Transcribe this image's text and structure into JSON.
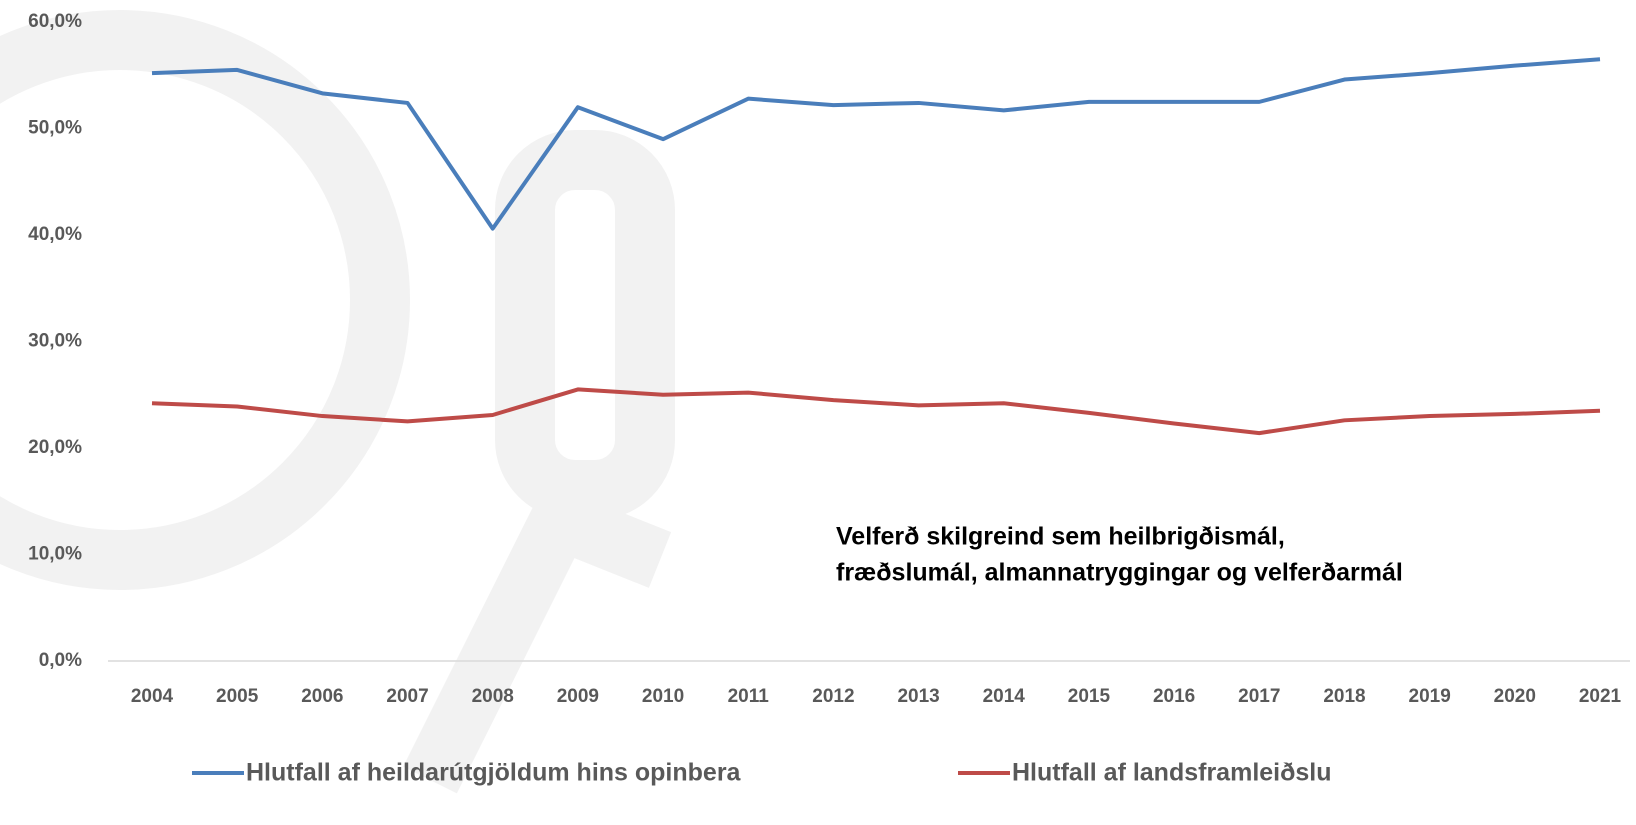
{
  "chart_data": {
    "type": "line",
    "annotation": [
      "Velferð skilgreind sem heilbrigðismál,",
      "fræðslumál, almannatryggingar og velferðarmál"
    ],
    "categories": [
      "2004",
      "2005",
      "2006",
      "2007",
      "2008",
      "2009",
      "2010",
      "2011",
      "2012",
      "2013",
      "2014",
      "2015",
      "2016",
      "2017",
      "2018",
      "2019",
      "2020",
      "2021"
    ],
    "series": [
      {
        "name": "Hlutfall af heildarútgjöldum hins opinbera",
        "color": "#4a7ebb",
        "values": [
          55.2,
          55.5,
          53.3,
          52.4,
          40.6,
          52.0,
          49.0,
          52.8,
          52.2,
          52.4,
          51.7,
          52.5,
          52.5,
          52.5,
          54.6,
          55.2,
          55.9,
          56.5
        ]
      },
      {
        "name": "Hlutfall af landsframleiðslu",
        "color": "#be4b48",
        "values": [
          24.2,
          23.9,
          23.0,
          22.5,
          23.1,
          25.5,
          25.0,
          25.2,
          24.5,
          24.0,
          24.2,
          23.3,
          22.3,
          21.4,
          22.6,
          23.0,
          23.2,
          23.5
        ]
      }
    ],
    "ylim": [
      0,
      60
    ],
    "yticks": [
      {
        "value": 0,
        "label": "0,0%"
      },
      {
        "value": 10,
        "label": "10,0%"
      },
      {
        "value": 20,
        "label": "20,0%"
      },
      {
        "value": 30,
        "label": "30,0%"
      },
      {
        "value": 40,
        "label": "40,0%"
      },
      {
        "value": 50,
        "label": "50,0%"
      },
      {
        "value": 60,
        "label": "60,0%"
      }
    ],
    "grid": false,
    "legend": "bottom"
  }
}
